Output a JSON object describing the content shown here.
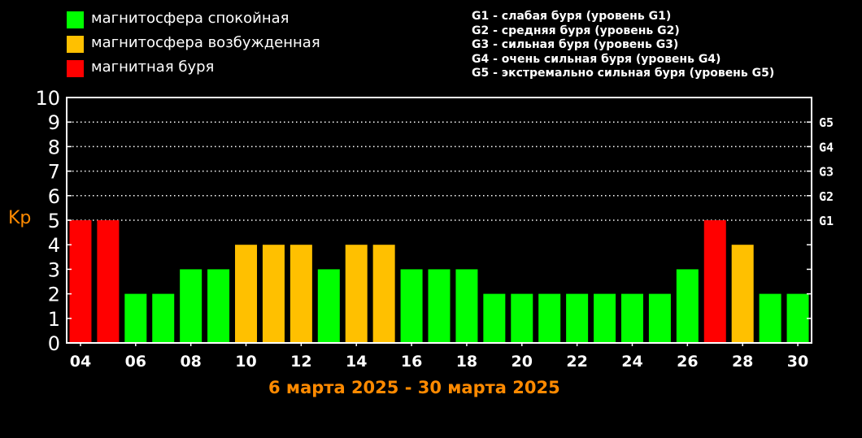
{
  "legend": [
    {
      "label": "магнитосфера спокойная",
      "color": "#00ff00"
    },
    {
      "label": "магнитосфера возбужденная",
      "color": "#ffc000"
    },
    {
      "label": "магнитная буря",
      "color": "#ff0000"
    }
  ],
  "storm_levels": [
    "G1 - слабая буря (уровень G1)",
    "G2 - средняя буря (уровень G2)",
    "G3 - сильная буря (уровень G3)",
    "G4 - очень сильная буря (уровень G4)",
    "G5 - экстремально сильная буря (уровень G5)"
  ],
  "chart_data": {
    "type": "bar",
    "ylabel": "Kp",
    "ylim": [
      0,
      10
    ],
    "yticks": [
      "0",
      "1",
      "2",
      "3",
      "4",
      "5",
      "6",
      "7",
      "8",
      "9",
      "10"
    ],
    "right_ticks": [
      {
        "value": 5,
        "label": "G1"
      },
      {
        "value": 6,
        "label": "G2"
      },
      {
        "value": 7,
        "label": "G3"
      },
      {
        "value": 8,
        "label": "G4"
      },
      {
        "value": 9,
        "label": "G5"
      }
    ],
    "grid": "dotted horizontal lines at 5-9",
    "categories": [
      "04",
      "05",
      "06",
      "07",
      "08",
      "09",
      "10",
      "11",
      "12",
      "13",
      "14",
      "15",
      "16",
      "17",
      "18",
      "19",
      "20",
      "21",
      "22",
      "23",
      "24",
      "25",
      "26",
      "27",
      "28",
      "29",
      "30"
    ],
    "xtick_labels": [
      "04",
      "06",
      "08",
      "10",
      "12",
      "14",
      "16",
      "18",
      "20",
      "22",
      "24",
      "26",
      "28",
      "30"
    ],
    "values": [
      5,
      5,
      2,
      2,
      3,
      3,
      4,
      4,
      4,
      3,
      4,
      4,
      3,
      3,
      3,
      2,
      2,
      2,
      2,
      2,
      2,
      2,
      3,
      5,
      4,
      2,
      2
    ],
    "color_rule": {
      "quiet": "#00ff00",
      "active": "#ffc000",
      "storm": "#ff0000",
      "active_at": 4,
      "storm_at": 5
    },
    "title": "6 марта 2025 - 30 марта 2025"
  }
}
